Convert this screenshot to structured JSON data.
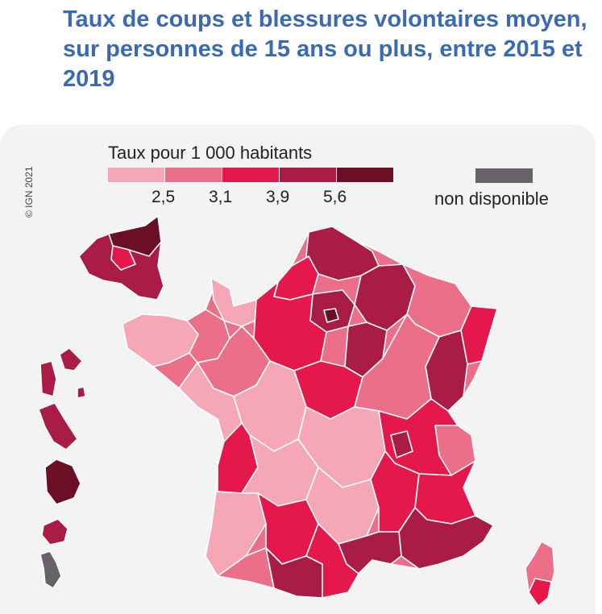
{
  "title": "Taux de coups et blessures volontaires moyen, sur personnes de 15 ans ou plus, entre 2015 et 2019",
  "copyright": "© IGN 2021",
  "legend": {
    "title": "Taux pour 1 000 habitants",
    "ticks": [
      "2,5",
      "3,1",
      "3,9",
      "5,6"
    ],
    "colors": [
      "#f5a7b5",
      "#ec6f89",
      "#e4184a",
      "#a81c46",
      "#6b0f27"
    ],
    "nd_label": "non disponible",
    "nd_color": "#666268"
  }
}
